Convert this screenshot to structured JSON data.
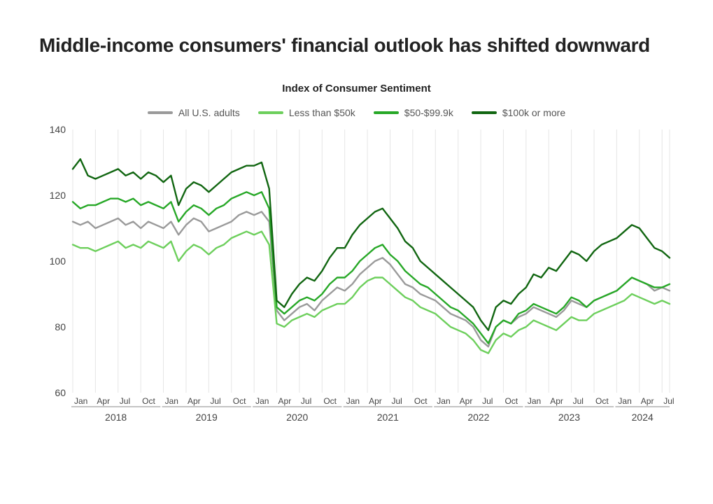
{
  "title": "Middle-income consumers' financial outlook has shifted downward",
  "subtitle": "Index of Consumer Sentiment",
  "chart": {
    "type": "line",
    "background_color": "#ffffff",
    "grid_color": "#e5e5e5",
    "axis_color": "#888888",
    "title_fontsize": 28,
    "subtitle_fontsize": 15,
    "tick_fontsize": 14,
    "month_fontsize": 12,
    "ylim": [
      60,
      140
    ],
    "ytick_step": 20,
    "yticks": [
      60,
      80,
      100,
      120,
      140
    ],
    "x_start": "2018-01",
    "x_end": "2024-08",
    "x_month_labels": [
      "Jan",
      "Apr",
      "Jul",
      "Oct"
    ],
    "years": [
      {
        "label": "2018",
        "months": [
          "Jan",
          "Apr",
          "Jul",
          "Oct"
        ]
      },
      {
        "label": "2019",
        "months": [
          "Jan",
          "Apr",
          "Jul",
          "Oct"
        ]
      },
      {
        "label": "2020",
        "months": [
          "Jan",
          "Apr",
          "Jul",
          "Oct"
        ]
      },
      {
        "label": "2021",
        "months": [
          "Jan",
          "Apr",
          "Jul",
          "Oct"
        ]
      },
      {
        "label": "2022",
        "months": [
          "Jan",
          "Apr",
          "Jul",
          "Oct"
        ]
      },
      {
        "label": "2023",
        "months": [
          "Jan",
          "Apr",
          "Jul",
          "Oct"
        ]
      },
      {
        "label": "2024",
        "months": [
          "Jan",
          "Apr",
          "Jul"
        ]
      }
    ],
    "line_width": 2.4,
    "legend_position": "top-center",
    "series": [
      {
        "name": "All U.S. adults",
        "color": "#9a9a9a",
        "values": [
          112,
          111,
          112,
          110,
          111,
          112,
          113,
          111,
          112,
          110,
          112,
          111,
          110,
          112,
          108,
          111,
          113,
          112,
          109,
          110,
          111,
          112,
          114,
          115,
          114,
          115,
          112,
          85,
          82,
          84,
          86,
          87,
          85,
          88,
          90,
          92,
          91,
          93,
          96,
          98,
          100,
          101,
          99,
          96,
          93,
          92,
          90,
          89,
          88,
          86,
          84,
          83,
          82,
          80,
          76,
          74,
          80,
          82,
          81,
          83,
          84,
          86,
          85,
          84,
          83,
          85,
          88,
          87,
          86,
          88,
          89,
          90,
          91,
          93,
          95,
          94,
          93,
          91,
          92,
          91
        ]
      },
      {
        "name": "Less than $50k",
        "color": "#6dcf5c",
        "values": [
          105,
          104,
          104,
          103,
          104,
          105,
          106,
          104,
          105,
          104,
          106,
          105,
          104,
          106,
          100,
          103,
          105,
          104,
          102,
          104,
          105,
          107,
          108,
          109,
          108,
          109,
          105,
          81,
          80,
          82,
          83,
          84,
          83,
          85,
          86,
          87,
          87,
          89,
          92,
          94,
          95,
          95,
          93,
          91,
          89,
          88,
          86,
          85,
          84,
          82,
          80,
          79,
          78,
          76,
          73,
          72,
          76,
          78,
          77,
          79,
          80,
          82,
          81,
          80,
          79,
          81,
          83,
          82,
          82,
          84,
          85,
          86,
          87,
          88,
          90,
          89,
          88,
          87,
          88,
          87
        ]
      },
      {
        "name": "$50-$99.9k",
        "color": "#27a827",
        "values": [
          118,
          116,
          117,
          117,
          118,
          119,
          119,
          118,
          119,
          117,
          118,
          117,
          116,
          118,
          112,
          115,
          117,
          116,
          114,
          116,
          117,
          119,
          120,
          121,
          120,
          121,
          116,
          86,
          84,
          86,
          88,
          89,
          88,
          90,
          93,
          95,
          95,
          97,
          100,
          102,
          104,
          105,
          102,
          100,
          97,
          95,
          93,
          92,
          90,
          88,
          86,
          85,
          83,
          81,
          78,
          75,
          80,
          82,
          81,
          84,
          85,
          87,
          86,
          85,
          84,
          86,
          89,
          88,
          86,
          88,
          89,
          90,
          91,
          93,
          95,
          94,
          93,
          92,
          92,
          93
        ]
      },
      {
        "name": "$100k or more",
        "color": "#116611",
        "values": [
          128,
          131,
          126,
          125,
          126,
          127,
          128,
          126,
          127,
          125,
          127,
          126,
          124,
          126,
          117,
          122,
          124,
          123,
          121,
          123,
          125,
          127,
          128,
          129,
          129,
          130,
          122,
          88,
          86,
          90,
          93,
          95,
          94,
          97,
          101,
          104,
          104,
          108,
          111,
          113,
          115,
          116,
          113,
          110,
          106,
          104,
          100,
          98,
          96,
          94,
          92,
          90,
          88,
          86,
          82,
          79,
          86,
          88,
          87,
          90,
          92,
          96,
          95,
          98,
          97,
          100,
          103,
          102,
          100,
          103,
          105,
          106,
          107,
          109,
          111,
          110,
          107,
          104,
          103,
          101
        ]
      }
    ]
  }
}
